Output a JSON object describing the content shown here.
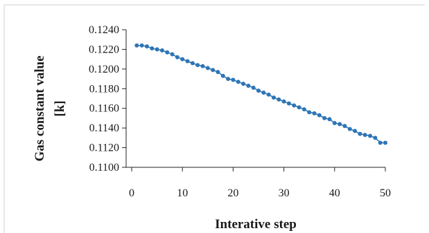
{
  "chart_data": {
    "type": "line",
    "xlabel": "Interative step",
    "ylabel": "Gas constant value",
    "ylabel_unit": "[k]",
    "xlim": [
      0,
      50
    ],
    "ylim": [
      0.11,
      0.124
    ],
    "xticks": [
      "0",
      "10",
      "20",
      "30",
      "40",
      "50"
    ],
    "yticks": [
      "0.1100",
      "0.1120",
      "0.1140",
      "0.1160",
      "0.1180",
      "0.1200",
      "0.1220",
      "0.1240"
    ],
    "grid": false,
    "legend": "none",
    "series": [
      {
        "color": "#2e75b6",
        "marker": "circle",
        "x": [
          1,
          2,
          3,
          4,
          5,
          6,
          7,
          8,
          9,
          10,
          11,
          12,
          13,
          14,
          15,
          16,
          17,
          18,
          19,
          20,
          21,
          22,
          23,
          24,
          25,
          26,
          27,
          28,
          29,
          30,
          31,
          32,
          33,
          34,
          35,
          36,
          37,
          38,
          39,
          40,
          41,
          42,
          43,
          44,
          45,
          46,
          47,
          48,
          49,
          50
        ],
        "y": [
          0.1224,
          0.1224,
          0.1223,
          0.1221,
          0.122,
          0.1219,
          0.1217,
          0.1215,
          0.1212,
          0.121,
          0.1208,
          0.1206,
          0.1204,
          0.1203,
          0.1201,
          0.1199,
          0.1197,
          0.1193,
          0.119,
          0.1189,
          0.1187,
          0.1185,
          0.1183,
          0.1181,
          0.1178,
          0.1176,
          0.1174,
          0.1171,
          0.1169,
          0.1167,
          0.1165,
          0.1163,
          0.1161,
          0.1159,
          0.1156,
          0.1155,
          0.1153,
          0.115,
          0.1149,
          0.1145,
          0.1144,
          0.1142,
          0.1139,
          0.1137,
          0.1134,
          0.1133,
          0.1132,
          0.113,
          0.1125,
          0.1125
        ]
      }
    ]
  }
}
